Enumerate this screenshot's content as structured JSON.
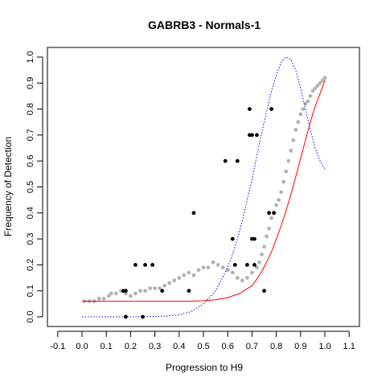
{
  "chart_data": {
    "type": "scatter",
    "title": "GABRB3 - Normals-1",
    "xlabel": "Progression to H9",
    "ylabel": "Frequency of Detection",
    "xlim": [
      -0.1,
      1.1
    ],
    "ylim": [
      0.0,
      1.0
    ],
    "xticks": [
      -0.1,
      0.0,
      0.1,
      0.2,
      0.3,
      0.4,
      0.5,
      0.6,
      0.7,
      0.8,
      0.9,
      1.0,
      1.1
    ],
    "yticks": [
      0.0,
      0.1,
      0.2,
      0.3,
      0.4,
      0.5,
      0.6,
      0.7,
      0.8,
      0.9,
      1.0
    ],
    "grid": false,
    "legend": "none",
    "series": [
      {
        "kind": "gray-smoothed-points",
        "color": "#b3b3b3",
        "x": [
          0.01,
          0.03,
          0.05,
          0.07,
          0.09,
          0.11,
          0.12,
          0.14,
          0.16,
          0.18,
          0.2,
          0.22,
          0.24,
          0.26,
          0.28,
          0.3,
          0.32,
          0.34,
          0.36,
          0.38,
          0.4,
          0.42,
          0.44,
          0.46,
          0.48,
          0.5,
          0.52,
          0.54,
          0.56,
          0.58,
          0.6,
          0.62,
          0.64,
          0.66,
          0.68,
          0.7,
          0.72,
          0.73,
          0.74,
          0.75,
          0.76,
          0.77,
          0.78,
          0.79,
          0.8,
          0.81,
          0.82,
          0.83,
          0.84,
          0.85,
          0.86,
          0.87,
          0.88,
          0.89,
          0.9,
          0.91,
          0.92,
          0.93,
          0.94,
          0.95,
          0.96,
          0.97,
          0.98,
          0.99,
          1.0
        ],
        "y": [
          0.06,
          0.06,
          0.06,
          0.07,
          0.07,
          0.08,
          0.09,
          0.09,
          0.1,
          0.09,
          0.08,
          0.09,
          0.1,
          0.1,
          0.11,
          0.11,
          0.11,
          0.12,
          0.13,
          0.14,
          0.15,
          0.16,
          0.17,
          0.16,
          0.18,
          0.19,
          0.19,
          0.21,
          0.2,
          0.19,
          0.18,
          0.17,
          0.15,
          0.14,
          0.15,
          0.17,
          0.19,
          0.21,
          0.24,
          0.27,
          0.31,
          0.34,
          0.38,
          0.4,
          0.43,
          0.45,
          0.48,
          0.52,
          0.56,
          0.6,
          0.64,
          0.68,
          0.72,
          0.75,
          0.78,
          0.8,
          0.82,
          0.83,
          0.85,
          0.87,
          0.88,
          0.89,
          0.9,
          0.91,
          0.92
        ]
      },
      {
        "kind": "black-points",
        "color": "#000000",
        "x": [
          0.18,
          0.18,
          0.22,
          0.25,
          0.26,
          0.29,
          0.33,
          0.44,
          0.46,
          0.59,
          0.62,
          0.63,
          0.64,
          0.68,
          0.69,
          0.69,
          0.7,
          0.7,
          0.71,
          0.71,
          0.72,
          0.75,
          0.77,
          0.78,
          0.79,
          0.17
        ],
        "y": [
          0.1,
          0.0,
          0.2,
          0.0,
          0.2,
          0.2,
          0.1,
          0.1,
          0.4,
          0.6,
          0.3,
          0.2,
          0.6,
          0.2,
          0.8,
          0.7,
          0.7,
          0.3,
          0.3,
          0.2,
          0.7,
          0.1,
          0.4,
          0.8,
          0.4,
          0.1
        ]
      },
      {
        "kind": "fitted-curve",
        "color": "#ff0000",
        "x": [
          0.0,
          0.1,
          0.2,
          0.3,
          0.4,
          0.45,
          0.5,
          0.55,
          0.6,
          0.65,
          0.7,
          0.72,
          0.74,
          0.76,
          0.78,
          0.8,
          0.82,
          0.84,
          0.86,
          0.88,
          0.9,
          0.92,
          0.94,
          0.96,
          0.98,
          1.0
        ],
        "y": [
          0.06,
          0.06,
          0.06,
          0.06,
          0.06,
          0.06,
          0.062,
          0.066,
          0.074,
          0.09,
          0.12,
          0.145,
          0.175,
          0.21,
          0.25,
          0.3,
          0.35,
          0.41,
          0.47,
          0.54,
          0.61,
          0.68,
          0.75,
          0.81,
          0.86,
          0.91
        ]
      },
      {
        "kind": "density-curve",
        "color": "#0000ff",
        "x": [
          0.0,
          0.1,
          0.2,
          0.3,
          0.35,
          0.4,
          0.45,
          0.5,
          0.55,
          0.6,
          0.62,
          0.64,
          0.66,
          0.68,
          0.7,
          0.72,
          0.74,
          0.76,
          0.78,
          0.8,
          0.82,
          0.84,
          0.86,
          0.88,
          0.9,
          0.92,
          0.94,
          0.96,
          0.98,
          1.0
        ],
        "y": [
          0.0,
          0.0,
          0.0,
          0.001,
          0.003,
          0.008,
          0.02,
          0.05,
          0.1,
          0.19,
          0.24,
          0.3,
          0.37,
          0.45,
          0.53,
          0.62,
          0.71,
          0.79,
          0.87,
          0.93,
          0.98,
          1.0,
          0.99,
          0.95,
          0.88,
          0.8,
          0.72,
          0.65,
          0.6,
          0.57
        ]
      }
    ]
  }
}
